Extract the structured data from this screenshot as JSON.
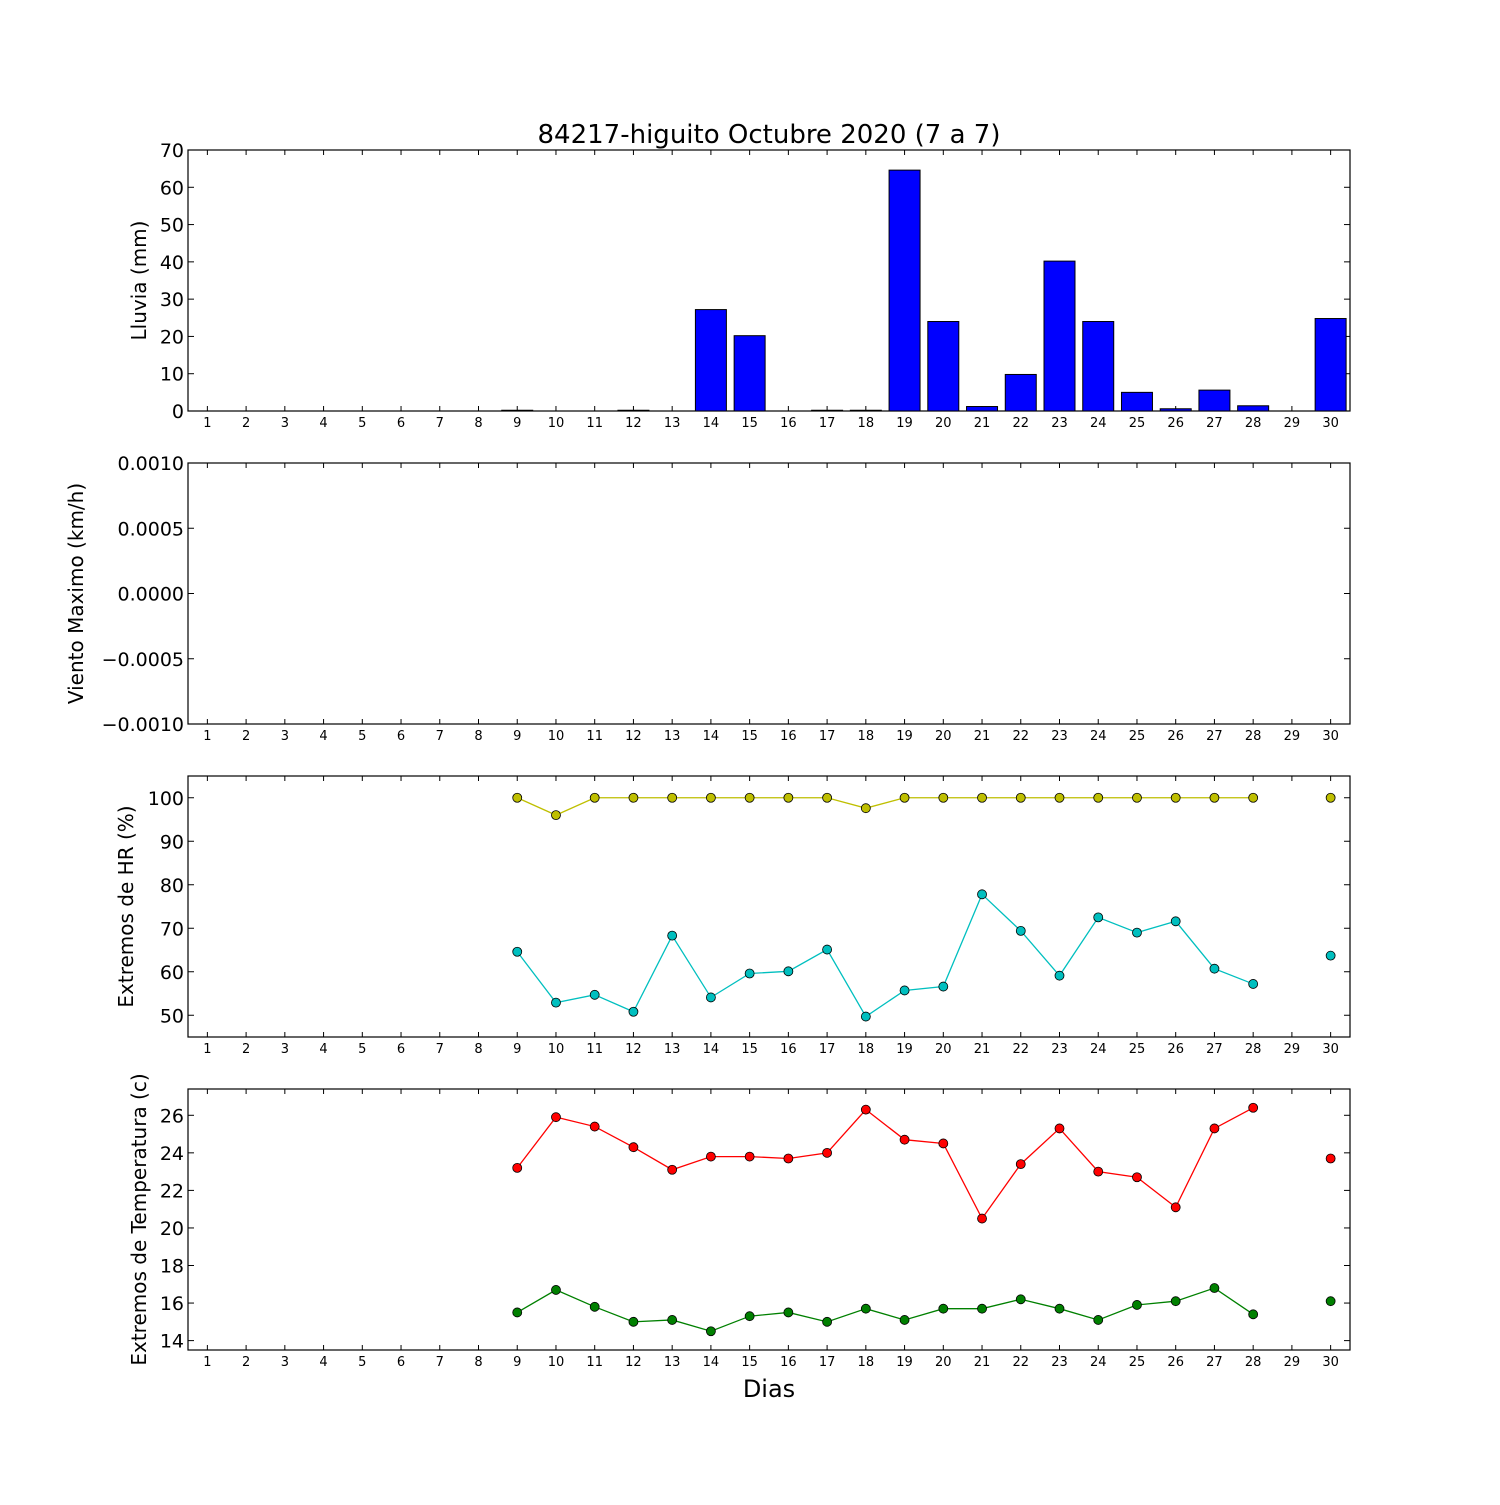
{
  "title": "84217-higuito Octubre 2020  (7 a 7)",
  "xlabel": "Dias",
  "colors": {
    "bar": "#0000ff",
    "hr_max": "#bfbf00",
    "hr_min": "#00bfbf",
    "temp_max": "#ff0000",
    "temp_min": "#008000"
  },
  "chart_data": [
    {
      "id": "lluvia",
      "type": "bar",
      "ylabel": "Lluvia (mm)",
      "xlim": [
        0.5,
        30.5
      ],
      "ylim": [
        0,
        70
      ],
      "xticks": [
        1,
        2,
        3,
        4,
        5,
        6,
        7,
        8,
        9,
        10,
        11,
        12,
        13,
        14,
        15,
        16,
        17,
        18,
        19,
        20,
        21,
        22,
        23,
        24,
        25,
        26,
        27,
        28,
        29,
        30
      ],
      "yticks": [
        {
          "value": 0,
          "label": "0"
        },
        {
          "value": 10,
          "label": "10"
        },
        {
          "value": 20,
          "label": "20"
        },
        {
          "value": 30,
          "label": "30"
        },
        {
          "value": 40,
          "label": "40"
        },
        {
          "value": 50,
          "label": "50"
        },
        {
          "value": 60,
          "label": "60"
        },
        {
          "value": 70,
          "label": "70"
        }
      ],
      "series": [
        {
          "color": "#0000ff",
          "x": [
            9,
            12,
            14,
            15,
            17,
            18,
            19,
            20,
            21,
            22,
            23,
            24,
            25,
            26,
            27,
            28,
            30
          ],
          "values": [
            0.2,
            0.2,
            27.2,
            20.2,
            0.2,
            0.2,
            64.6,
            24.0,
            1.2,
            9.8,
            40.2,
            24.0,
            5.0,
            0.6,
            5.6,
            1.4,
            24.8
          ]
        }
      ]
    },
    {
      "id": "viento",
      "type": "line",
      "ylabel": "Viento Maximo (km/h)",
      "xlim": [
        0.5,
        30.5
      ],
      "ylim": [
        -0.001,
        0.001
      ],
      "xticks": [
        1,
        2,
        3,
        4,
        5,
        6,
        7,
        8,
        9,
        10,
        11,
        12,
        13,
        14,
        15,
        16,
        17,
        18,
        19,
        20,
        21,
        22,
        23,
        24,
        25,
        26,
        27,
        28,
        29,
        30
      ],
      "yticks": [
        {
          "value": -0.001,
          "label": "−0.0010"
        },
        {
          "value": -0.0005,
          "label": "−0.0005"
        },
        {
          "value": 0,
          "label": "0.0000"
        },
        {
          "value": 0.0005,
          "label": "0.0005"
        },
        {
          "value": 0.001,
          "label": "0.0010"
        }
      ],
      "series": []
    },
    {
      "id": "hr",
      "type": "line",
      "ylabel": "Extremos de HR (%)",
      "xlim": [
        0.5,
        30.5
      ],
      "ylim": [
        45,
        105
      ],
      "xticks": [
        1,
        2,
        3,
        4,
        5,
        6,
        7,
        8,
        9,
        10,
        11,
        12,
        13,
        14,
        15,
        16,
        17,
        18,
        19,
        20,
        21,
        22,
        23,
        24,
        25,
        26,
        27,
        28,
        29,
        30
      ],
      "yticks": [
        {
          "value": 50,
          "label": "50"
        },
        {
          "value": 60,
          "label": "60"
        },
        {
          "value": 70,
          "label": "70"
        },
        {
          "value": 80,
          "label": "80"
        },
        {
          "value": 90,
          "label": "90"
        },
        {
          "value": 100,
          "label": "100"
        }
      ],
      "series": [
        {
          "color": "#bfbf00",
          "x": [
            9,
            10,
            11,
            12,
            13,
            14,
            15,
            16,
            17,
            18,
            19,
            20,
            21,
            22,
            23,
            24,
            25,
            26,
            27,
            28,
            29,
            30
          ],
          "values": [
            100,
            96,
            100,
            100,
            100,
            100,
            100,
            100,
            100,
            97.6,
            100,
            100,
            100,
            100,
            100,
            100,
            100,
            100,
            100,
            100,
            null,
            100
          ]
        },
        {
          "color": "#00bfbf",
          "x": [
            9,
            10,
            11,
            12,
            13,
            14,
            15,
            16,
            17,
            18,
            19,
            20,
            21,
            22,
            23,
            24,
            25,
            26,
            27,
            28,
            29,
            30
          ],
          "values": [
            64.6,
            52.9,
            54.7,
            50.8,
            68.3,
            54.1,
            59.6,
            60.1,
            65.1,
            49.7,
            55.7,
            56.6,
            77.8,
            69.4,
            59.1,
            72.5,
            69.0,
            71.6,
            60.7,
            57.2,
            null,
            63.7
          ]
        }
      ]
    },
    {
      "id": "temperatura",
      "type": "line",
      "ylabel": "Extremos de Temperatura (c)",
      "xlim": [
        0.5,
        30.5
      ],
      "ylim": [
        13.5,
        27.4
      ],
      "xticks": [
        1,
        2,
        3,
        4,
        5,
        6,
        7,
        8,
        9,
        10,
        11,
        12,
        13,
        14,
        15,
        16,
        17,
        18,
        19,
        20,
        21,
        22,
        23,
        24,
        25,
        26,
        27,
        28,
        29,
        30
      ],
      "yticks": [
        {
          "value": 14,
          "label": "14"
        },
        {
          "value": 16,
          "label": "16"
        },
        {
          "value": 18,
          "label": "18"
        },
        {
          "value": 20,
          "label": "20"
        },
        {
          "value": 22,
          "label": "22"
        },
        {
          "value": 24,
          "label": "24"
        },
        {
          "value": 26,
          "label": "26"
        }
      ],
      "series": [
        {
          "color": "#ff0000",
          "x": [
            9,
            10,
            11,
            12,
            13,
            14,
            15,
            16,
            17,
            18,
            19,
            20,
            21,
            22,
            23,
            24,
            25,
            26,
            27,
            28,
            29,
            30
          ],
          "values": [
            23.2,
            25.9,
            25.4,
            24.3,
            23.1,
            23.8,
            23.8,
            23.7,
            24.0,
            26.3,
            24.7,
            24.5,
            20.5,
            23.4,
            25.3,
            23.0,
            22.7,
            21.1,
            25.3,
            26.4,
            null,
            23.7
          ]
        },
        {
          "color": "#008000",
          "x": [
            9,
            10,
            11,
            12,
            13,
            14,
            15,
            16,
            17,
            18,
            19,
            20,
            21,
            22,
            23,
            24,
            25,
            26,
            27,
            28,
            29,
            30
          ],
          "values": [
            15.5,
            16.7,
            15.8,
            15.0,
            15.1,
            14.5,
            15.3,
            15.5,
            15.0,
            15.7,
            15.1,
            15.7,
            15.7,
            16.2,
            15.7,
            15.1,
            15.9,
            16.1,
            16.8,
            15.4,
            null,
            16.1
          ]
        }
      ]
    }
  ]
}
